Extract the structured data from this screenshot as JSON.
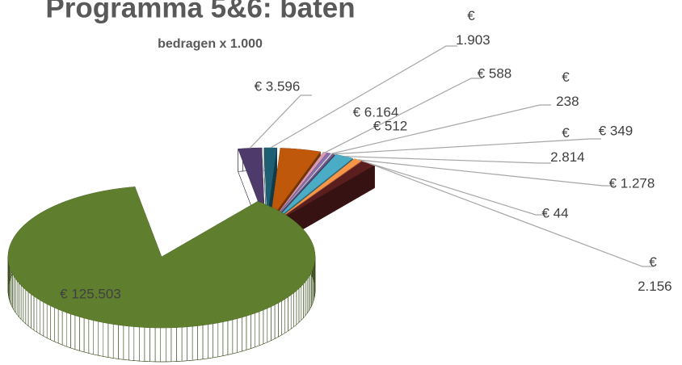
{
  "chart_data": {
    "type": "pie",
    "title": "Programma 5&6: baten",
    "subtitle": "bedragen x 1.000",
    "values": [
      3596,
      1903,
      6164,
      588,
      512,
      238,
      349,
      2814,
      1278,
      44,
      2156,
      125503
    ],
    "value_labels": [
      "€ 3.596",
      "€ 1.903",
      "€ 6.164",
      "€ 588",
      "€ 512",
      "€ 238",
      "€ 349",
      "€ 2.814",
      "€ 1.278",
      "€ 44",
      "€ 2.156",
      "€ 125.503"
    ],
    "colors": [
      "#4e3b6c",
      "#1e5f74",
      "#c0580c",
      "#d99ab4",
      "#8b6fb3",
      "#d9d9d9",
      "#6f5a93",
      "#4bacc6",
      "#f79646",
      "#c0504d",
      "#5a1e1e",
      "#5f7f2f"
    ]
  }
}
